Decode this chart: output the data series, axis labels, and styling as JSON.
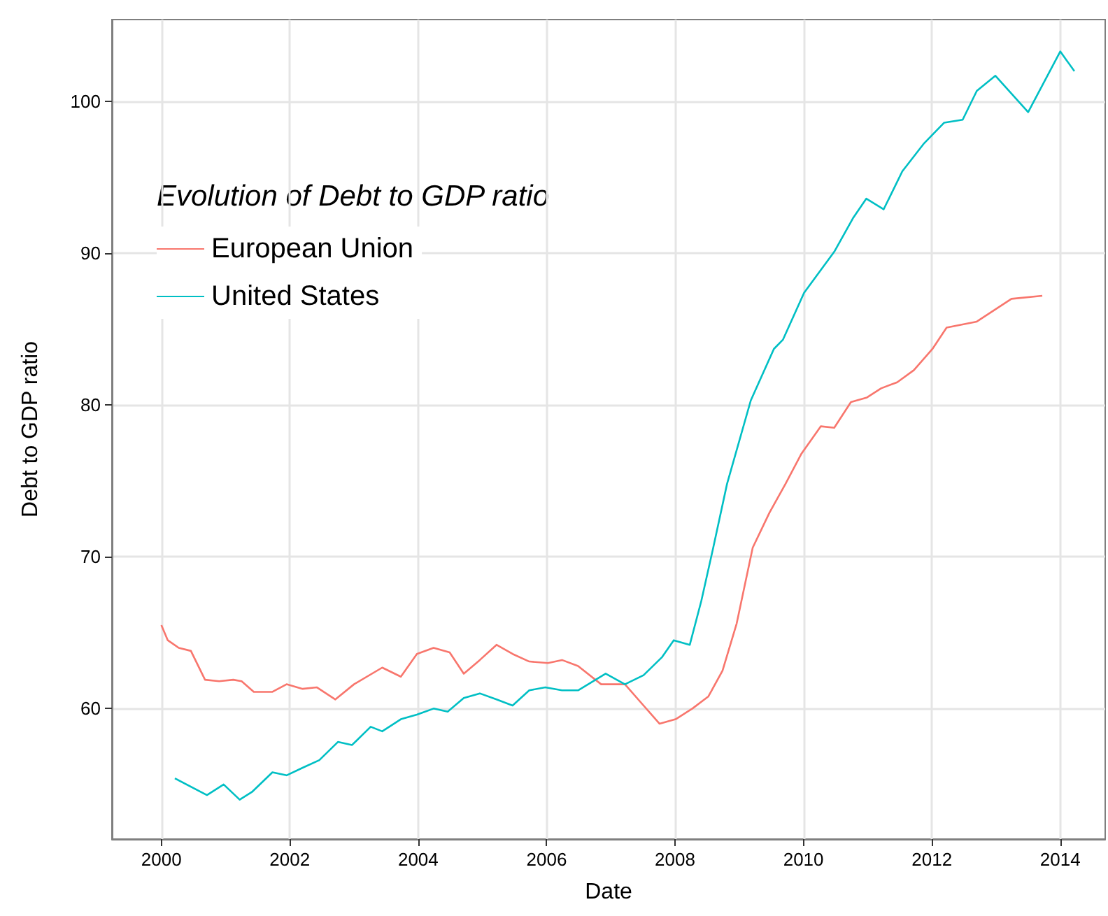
{
  "chart_data": {
    "type": "line",
    "xlabel": "Date",
    "ylabel": "Debt to GDP ratio",
    "legend_title": "Evolution of Debt to GDP ratio",
    "legend": "top left",
    "grid": true,
    "marker": "none",
    "line_style": "solid",
    "xlim": [
      1999.23,
      2014.7
    ],
    "xticks": [
      2000,
      2002,
      2004,
      2006,
      2008,
      2010,
      2012,
      2014
    ],
    "ylim": [
      51.4,
      105.4
    ],
    "yticks": [
      60,
      70,
      80,
      90,
      100
    ],
    "series": [
      {
        "name": "European Union",
        "color": "#f8766d",
        "x": [
          2000.0,
          2000.1,
          2000.27,
          2000.46,
          2000.68,
          2000.9,
          2001.12,
          2001.25,
          2001.44,
          2001.73,
          2001.95,
          2002.2,
          2002.42,
          2002.71,
          2003.0,
          2003.44,
          2003.73,
          2003.98,
          2004.24,
          2004.49,
          2004.71,
          2004.96,
          2005.22,
          2005.47,
          2005.73,
          2006.02,
          2006.24,
          2006.49,
          2006.85,
          2007.22,
          2007.51,
          2007.76,
          2008.01,
          2008.27,
          2008.52,
          2008.74,
          2008.96,
          2009.21,
          2009.47,
          2009.72,
          2009.97,
          2010.27,
          2010.48,
          2010.74,
          2010.99,
          2011.21,
          2011.46,
          2011.72,
          2012.01,
          2012.23,
          2012.7,
          2013.24,
          2013.72
        ],
        "values": [
          65.5,
          64.5,
          64.0,
          63.8,
          61.9,
          61.8,
          61.9,
          61.8,
          61.1,
          61.1,
          61.6,
          61.3,
          61.4,
          60.6,
          61.6,
          62.7,
          62.1,
          63.6,
          64.0,
          63.7,
          62.3,
          63.2,
          64.2,
          63.6,
          63.1,
          63.0,
          63.2,
          62.8,
          61.6,
          61.6,
          60.2,
          59.0,
          59.3,
          60.0,
          60.8,
          62.5,
          65.6,
          70.6,
          72.9,
          74.8,
          76.8,
          78.6,
          78.5,
          80.2,
          80.5,
          81.1,
          81.5,
          82.3,
          83.7,
          85.1,
          85.5,
          87.0,
          87.2
        ]
      },
      {
        "name": "United States",
        "color": "#00bfc4",
        "x": [
          2000.21,
          2000.71,
          2000.97,
          2001.22,
          2001.41,
          2001.73,
          2001.95,
          2002.2,
          2002.46,
          2002.75,
          2002.97,
          2003.26,
          2003.44,
          2003.73,
          2003.98,
          2004.24,
          2004.46,
          2004.71,
          2004.96,
          2005.22,
          2005.47,
          2005.73,
          2005.98,
          2006.24,
          2006.49,
          2006.92,
          2007.22,
          2007.51,
          2007.8,
          2007.98,
          2008.23,
          2008.41,
          2008.59,
          2008.81,
          2009.18,
          2009.54,
          2009.68,
          2010.01,
          2010.48,
          2010.77,
          2010.98,
          2011.25,
          2011.54,
          2011.87,
          2012.19,
          2012.48,
          2012.7,
          2012.99,
          2013.5,
          2014.0,
          2014.22
        ],
        "values": [
          55.4,
          54.3,
          55.0,
          54.0,
          54.5,
          55.8,
          55.6,
          56.1,
          56.6,
          57.8,
          57.6,
          58.8,
          58.5,
          59.3,
          59.6,
          60.0,
          59.8,
          60.7,
          61.0,
          60.6,
          60.2,
          61.2,
          61.4,
          61.2,
          61.2,
          62.3,
          61.6,
          62.2,
          63.4,
          64.5,
          64.2,
          67.1,
          70.5,
          74.8,
          80.3,
          83.7,
          84.3,
          87.4,
          90.1,
          92.3,
          93.6,
          92.9,
          95.4,
          97.2,
          98.6,
          98.8,
          100.7,
          101.7,
          99.3,
          103.3,
          102.0
        ]
      }
    ]
  }
}
